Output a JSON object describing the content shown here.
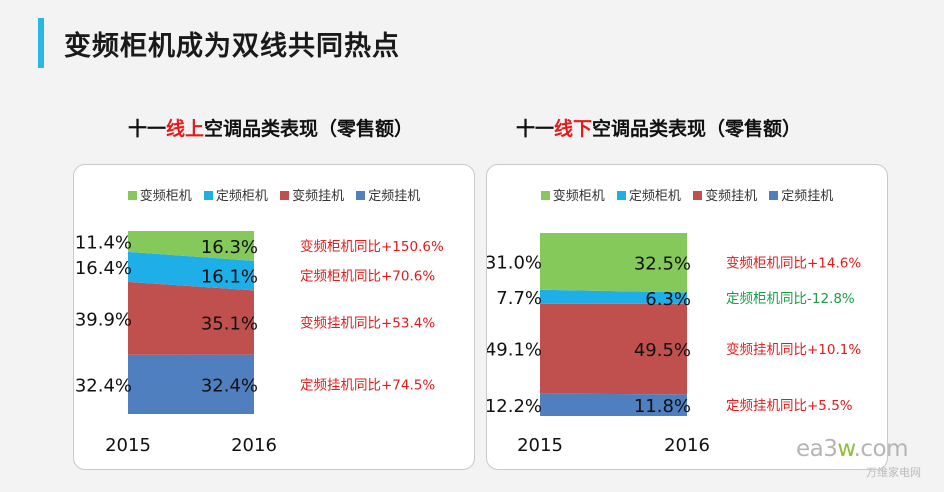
{
  "page": {
    "title": "变频柜机成为双线共同热点"
  },
  "panels": [
    {
      "title_pre": "十一",
      "title_hl": "线上",
      "title_post": "空调品类表现（零售额）"
    },
    {
      "title_pre": "十一",
      "title_hl": "线下",
      "title_post": "空调品类表现（零售额）"
    }
  ],
  "legend": [
    {
      "label": "变频柜机",
      "color": "#84c95a"
    },
    {
      "label": "定频柜机",
      "color": "#1eaee8"
    },
    {
      "label": "变频挂机",
      "color": "#c0504d"
    },
    {
      "label": "定频挂机",
      "color": "#4f7fbf"
    }
  ],
  "chart_data": [
    {
      "type": "area",
      "stacked": "percent",
      "title": "十一线上空调品类表现（零售额）",
      "categories": [
        "2015",
        "2016"
      ],
      "series": [
        {
          "name": "定频挂机",
          "values": [
            32.4,
            32.4
          ],
          "labels": [
            "32.4%",
            "32.4%"
          ],
          "yoy": "定频挂机同比+74.5%",
          "yoy_color": "#e21b1b"
        },
        {
          "name": "变频挂机",
          "values": [
            39.9,
            35.1
          ],
          "labels": [
            "39.9%",
            "35.1%"
          ],
          "yoy": "变频挂机同比+53.4%",
          "yoy_color": "#e21b1b"
        },
        {
          "name": "定频柜机",
          "values": [
            16.4,
            16.1
          ],
          "labels": [
            "16.4%",
            "16.1%"
          ],
          "yoy": "定频柜机同比+70.6%",
          "yoy_color": "#e21b1b"
        },
        {
          "name": "变频柜机",
          "values": [
            11.4,
            16.3
          ],
          "labels": [
            "11.4%",
            "16.3%"
          ],
          "yoy": "变频柜机同比+150.6%",
          "yoy_color": "#e21b1b"
        }
      ]
    },
    {
      "type": "area",
      "stacked": "percent",
      "title": "十一线下空调品类表现（零售额）",
      "categories": [
        "2015",
        "2016"
      ],
      "series": [
        {
          "name": "定频挂机",
          "values": [
            12.2,
            11.8
          ],
          "labels": [
            "12.2%",
            "11.8%"
          ],
          "yoy": "定频挂机同比+5.5%",
          "yoy_color": "#e21b1b"
        },
        {
          "name": "变频挂机",
          "values": [
            49.1,
            49.5
          ],
          "labels": [
            "49.1%",
            "49.5%"
          ],
          "yoy": "变频挂机同比+10.1%",
          "yoy_color": "#e21b1b"
        },
        {
          "name": "定频柜机",
          "values": [
            7.7,
            6.3
          ],
          "labels": [
            "7.7%",
            "6.3%"
          ],
          "yoy": "定频柜机同比-12.8%",
          "yoy_color": "#1a9e4a"
        },
        {
          "name": "变频柜机",
          "values": [
            31.0,
            32.5
          ],
          "labels": [
            "31.0%",
            "32.5%"
          ],
          "yoy": "变频柜机同比+14.6%",
          "yoy_color": "#e21b1b"
        }
      ]
    }
  ],
  "watermark": {
    "logo_a": "ea3",
    "logo_w": "w",
    "logo_b": ".com",
    "sub": "万维家电网"
  }
}
